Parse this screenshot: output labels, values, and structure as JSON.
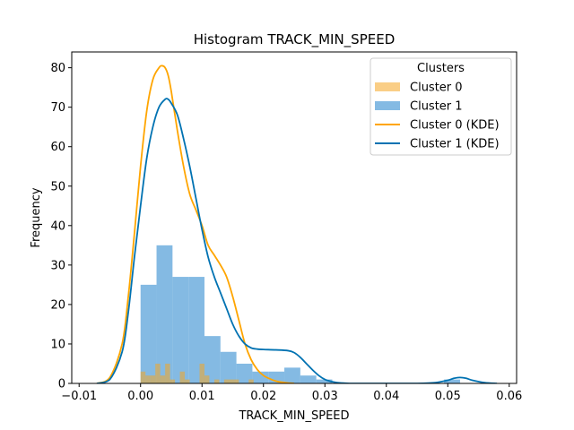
{
  "chart_data": {
    "type": "bar",
    "title": "Histogram TRACK_MIN_SPEED",
    "xlabel": "TRACK_MIN_SPEED",
    "ylabel": "Frequency",
    "xlim": [
      -0.0112,
      0.0612
    ],
    "ylim": [
      0,
      84
    ],
    "x_ticks": [
      -0.01,
      0.0,
      0.01,
      0.02,
      0.03,
      0.04,
      0.05,
      0.06
    ],
    "x_tick_labels": [
      "−0.01",
      "0.00",
      "0.01",
      "0.02",
      "0.03",
      "0.04",
      "0.05",
      "0.06"
    ],
    "y_ticks": [
      0,
      10,
      20,
      30,
      40,
      50,
      60,
      70,
      80
    ],
    "y_tick_labels": [
      "0",
      "10",
      "20",
      "30",
      "40",
      "50",
      "60",
      "70",
      "80"
    ],
    "legend": {
      "title": "Clusters",
      "position": "upper right",
      "entries": [
        "Cluster 0",
        "Cluster 1",
        "Cluster 0 (KDE)",
        "Cluster 1 (KDE)"
      ]
    },
    "grid": false,
    "series": [
      {
        "name": "Cluster 0",
        "kind": "histogram",
        "color": "#f5a623",
        "opacity": 0.55,
        "bins": [
          {
            "x0": 0.0,
            "x1": 0.0008,
            "count": 3
          },
          {
            "x0": 0.0008,
            "x1": 0.0016,
            "count": 2
          },
          {
            "x0": 0.0016,
            "x1": 0.0024,
            "count": 2
          },
          {
            "x0": 0.0024,
            "x1": 0.0032,
            "count": 5
          },
          {
            "x0": 0.0032,
            "x1": 0.004,
            "count": 2
          },
          {
            "x0": 0.004,
            "x1": 0.0048,
            "count": 5
          },
          {
            "x0": 0.0048,
            "x1": 0.0056,
            "count": 1
          },
          {
            "x0": 0.0056,
            "x1": 0.0064,
            "count": 0
          },
          {
            "x0": 0.0064,
            "x1": 0.0072,
            "count": 3
          },
          {
            "x0": 0.0072,
            "x1": 0.008,
            "count": 1
          },
          {
            "x0": 0.008,
            "x1": 0.0088,
            "count": 0
          },
          {
            "x0": 0.0088,
            "x1": 0.0096,
            "count": 0
          },
          {
            "x0": 0.0096,
            "x1": 0.0104,
            "count": 5
          },
          {
            "x0": 0.0104,
            "x1": 0.0112,
            "count": 2
          },
          {
            "x0": 0.0112,
            "x1": 0.012,
            "count": 0
          },
          {
            "x0": 0.012,
            "x1": 0.0128,
            "count": 1
          },
          {
            "x0": 0.0128,
            "x1": 0.0136,
            "count": 0
          },
          {
            "x0": 0.0136,
            "x1": 0.0144,
            "count": 1
          },
          {
            "x0": 0.0144,
            "x1": 0.0152,
            "count": 1
          },
          {
            "x0": 0.0152,
            "x1": 0.016,
            "count": 1
          },
          {
            "x0": 0.016,
            "x1": 0.0168,
            "count": 0
          },
          {
            "x0": 0.0168,
            "x1": 0.0176,
            "count": 0
          },
          {
            "x0": 0.0176,
            "x1": 0.0184,
            "count": 1
          }
        ]
      },
      {
        "name": "Cluster 1",
        "kind": "histogram",
        "color": "#5ba3d9",
        "opacity": 0.75,
        "bins": [
          {
            "x0": 0.0,
            "x1": 0.0026,
            "count": 25
          },
          {
            "x0": 0.0026,
            "x1": 0.0052,
            "count": 35
          },
          {
            "x0": 0.0052,
            "x1": 0.0078,
            "count": 27
          },
          {
            "x0": 0.0078,
            "x1": 0.0104,
            "count": 27
          },
          {
            "x0": 0.0104,
            "x1": 0.013,
            "count": 12
          },
          {
            "x0": 0.013,
            "x1": 0.0156,
            "count": 8
          },
          {
            "x0": 0.0156,
            "x1": 0.0182,
            "count": 5
          },
          {
            "x0": 0.0182,
            "x1": 0.0208,
            "count": 3
          },
          {
            "x0": 0.0208,
            "x1": 0.0234,
            "count": 3
          },
          {
            "x0": 0.0234,
            "x1": 0.026,
            "count": 4
          },
          {
            "x0": 0.026,
            "x1": 0.0286,
            "count": 2
          },
          {
            "x0": 0.0286,
            "x1": 0.0312,
            "count": 1
          },
          {
            "x0": 0.0312,
            "x1": 0.0338,
            "count": 0
          },
          {
            "x0": 0.0338,
            "x1": 0.0364,
            "count": 0
          },
          {
            "x0": 0.0364,
            "x1": 0.039,
            "count": 0
          },
          {
            "x0": 0.039,
            "x1": 0.0416,
            "count": 0
          },
          {
            "x0": 0.0416,
            "x1": 0.0442,
            "count": 0
          },
          {
            "x0": 0.0442,
            "x1": 0.0468,
            "count": 0
          },
          {
            "x0": 0.0468,
            "x1": 0.0494,
            "count": 0
          },
          {
            "x0": 0.0494,
            "x1": 0.052,
            "count": 1
          }
        ]
      },
      {
        "name": "Cluster 0 (KDE)",
        "kind": "line",
        "color": "#ffa500",
        "x": [
          -0.0071,
          -0.005,
          -0.003,
          -0.002,
          -0.001,
          0.0,
          0.001,
          0.002,
          0.003,
          0.0035,
          0.004,
          0.0045,
          0.005,
          0.006,
          0.007,
          0.008,
          0.009,
          0.01,
          0.011,
          0.012,
          0.013,
          0.014,
          0.015,
          0.016,
          0.017,
          0.018,
          0.019,
          0.02,
          0.021,
          0.022,
          0.023,
          0.024,
          0.025
        ],
        "y": [
          0,
          1.5,
          10,
          22,
          38,
          55,
          69,
          77,
          80,
          80.5,
          80,
          78,
          74,
          64,
          55,
          48,
          44,
          40,
          35,
          32.5,
          30,
          27,
          22,
          16,
          10,
          6,
          3.5,
          2,
          1.2,
          0.6,
          0.3,
          0.1,
          0
        ]
      },
      {
        "name": "Cluster 1 (KDE)",
        "kind": "line",
        "color": "#0072b2",
        "x": [
          -0.0071,
          -0.005,
          -0.003,
          -0.002,
          -0.001,
          0.0,
          0.001,
          0.002,
          0.003,
          0.004,
          0.0045,
          0.005,
          0.006,
          0.007,
          0.008,
          0.009,
          0.01,
          0.011,
          0.012,
          0.013,
          0.014,
          0.015,
          0.016,
          0.017,
          0.018,
          0.019,
          0.02,
          0.022,
          0.024,
          0.025,
          0.026,
          0.027,
          0.028,
          0.029,
          0.03,
          0.031,
          0.032,
          0.034,
          0.036,
          0.04,
          0.045,
          0.048,
          0.05,
          0.051,
          0.052,
          0.053,
          0.054,
          0.056,
          0.058
        ],
        "y": [
          0,
          1,
          8,
          18,
          32,
          45,
          57,
          65,
          70,
          72,
          72,
          71,
          68,
          62,
          55,
          47,
          39,
          32,
          27,
          23,
          19,
          15,
          12,
          10,
          9,
          8.7,
          8.6,
          8.5,
          8.3,
          7.8,
          6.6,
          5,
          3.4,
          2,
          1,
          0.5,
          0.2,
          0,
          0,
          0,
          0,
          0.2,
          0.8,
          1.3,
          1.5,
          1.3,
          0.8,
          0.2,
          0
        ]
      }
    ]
  }
}
